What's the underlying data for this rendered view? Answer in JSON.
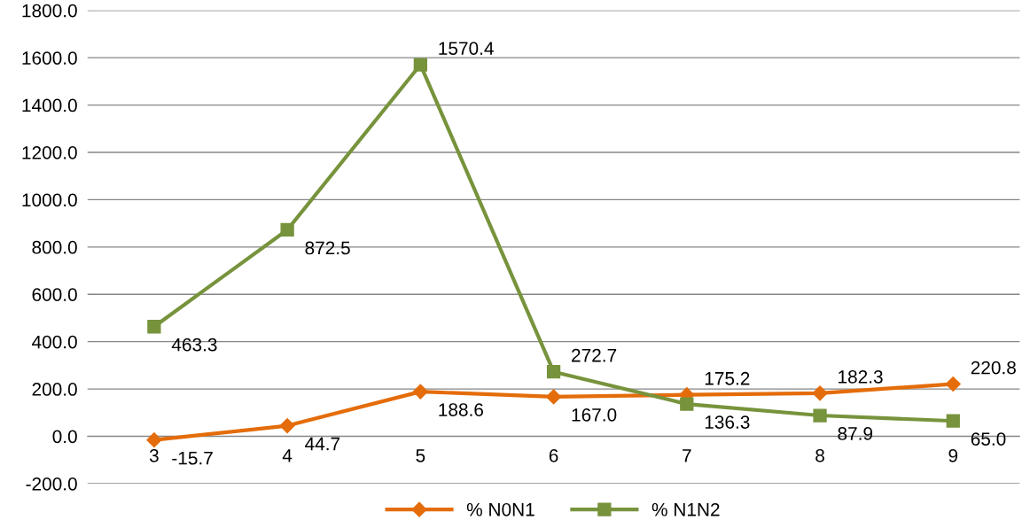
{
  "chart_data": {
    "type": "line",
    "categories": [
      "3",
      "4",
      "5",
      "6",
      "7",
      "8",
      "9"
    ],
    "series": [
      {
        "name": "% N0N1",
        "color": "#e46c0a",
        "marker": "diamond",
        "values": [
          -15.7,
          44.7,
          188.6,
          167.0,
          175.2,
          182.3,
          220.8
        ],
        "value_labels": [
          "-15.7",
          "44.7",
          "188.6",
          "167.0",
          "175.2",
          "182.3",
          "220.8"
        ]
      },
      {
        "name": "% N1N2",
        "color": "#77933c",
        "marker": "square",
        "values": [
          463.3,
          872.5,
          1570.4,
          272.7,
          136.3,
          87.9,
          65.0
        ],
        "value_labels": [
          "463.3",
          "872.5",
          "1570.4",
          "272.7",
          "136.3",
          "87.9",
          "65.0"
        ]
      }
    ],
    "ylim": [
      -200,
      1800
    ],
    "yticks": [
      {
        "value": -200,
        "label": "-200.0"
      },
      {
        "value": 0,
        "label": "0.0"
      },
      {
        "value": 200,
        "label": "200.0"
      },
      {
        "value": 400,
        "label": "400.0"
      },
      {
        "value": 600,
        "label": "600.0"
      },
      {
        "value": 800,
        "label": "800.0"
      },
      {
        "value": 1000,
        "label": "1000.0"
      },
      {
        "value": 1200,
        "label": "1200.0"
      },
      {
        "value": 1400,
        "label": "1400.0"
      },
      {
        "value": 1600,
        "label": "1600.0"
      },
      {
        "value": 1800,
        "label": "1800.0"
      }
    ],
    "grid": "y",
    "legend": "bottom",
    "line_style": "solid"
  }
}
